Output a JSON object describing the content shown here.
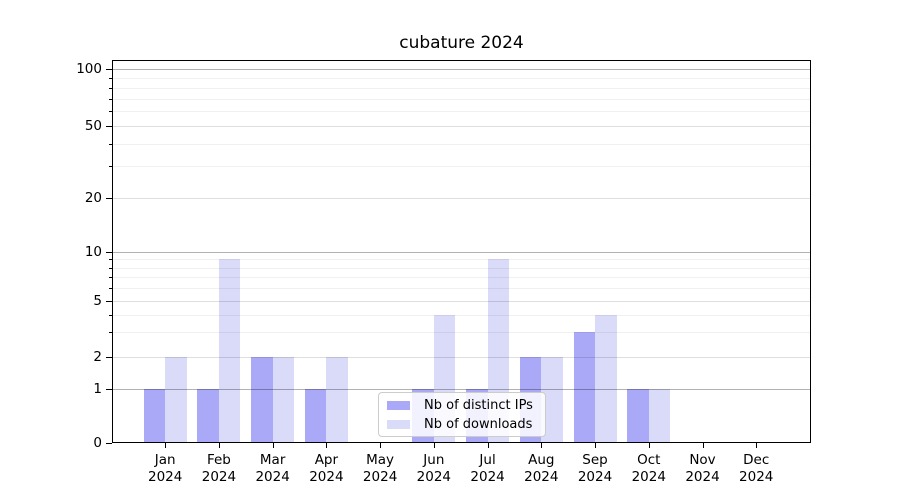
{
  "chart_data": {
    "type": "bar",
    "title": "cubature 2024",
    "x_axis": {
      "months": [
        "Jan",
        "Feb",
        "Mar",
        "Apr",
        "May",
        "Jun",
        "Jul",
        "Aug",
        "Sep",
        "Oct",
        "Nov",
        "Dec"
      ],
      "year_label": "2024"
    },
    "y_axis": {
      "tick_labels": [
        "100",
        "50",
        "20",
        "10",
        "5",
        "2",
        "1",
        "0"
      ],
      "tick_values": [
        100,
        50,
        20,
        10,
        5,
        2,
        1,
        0
      ],
      "minor_tick_values": [
        3,
        4,
        6,
        7,
        8,
        9,
        30,
        40,
        60,
        70,
        80,
        90
      ],
      "scale": "log-like (log spacing above 1, zero shown at baseline)",
      "range": [
        0,
        100
      ]
    },
    "series": [
      {
        "key": "distinct-ips",
        "name": "Nb of distinct IPs",
        "color": "#a9a9f8",
        "values": [
          1,
          1,
          2,
          1,
          0,
          1,
          1,
          2,
          3,
          1,
          0,
          0
        ]
      },
      {
        "key": "downloads",
        "name": "Nb of downloads",
        "color": "#dadaf9",
        "values": [
          2,
          9,
          2,
          2,
          0,
          4,
          9,
          2,
          4,
          1,
          0,
          0
        ]
      }
    ],
    "legend": {
      "position": "lower center"
    },
    "grid": {
      "on": true,
      "strong_line_color": "rgba(0,0,0,0.30)",
      "labeled_line_color": "rgba(0,0,0,0.13)",
      "minor_line_color": "rgba(0,0,0,0.06)"
    }
  }
}
